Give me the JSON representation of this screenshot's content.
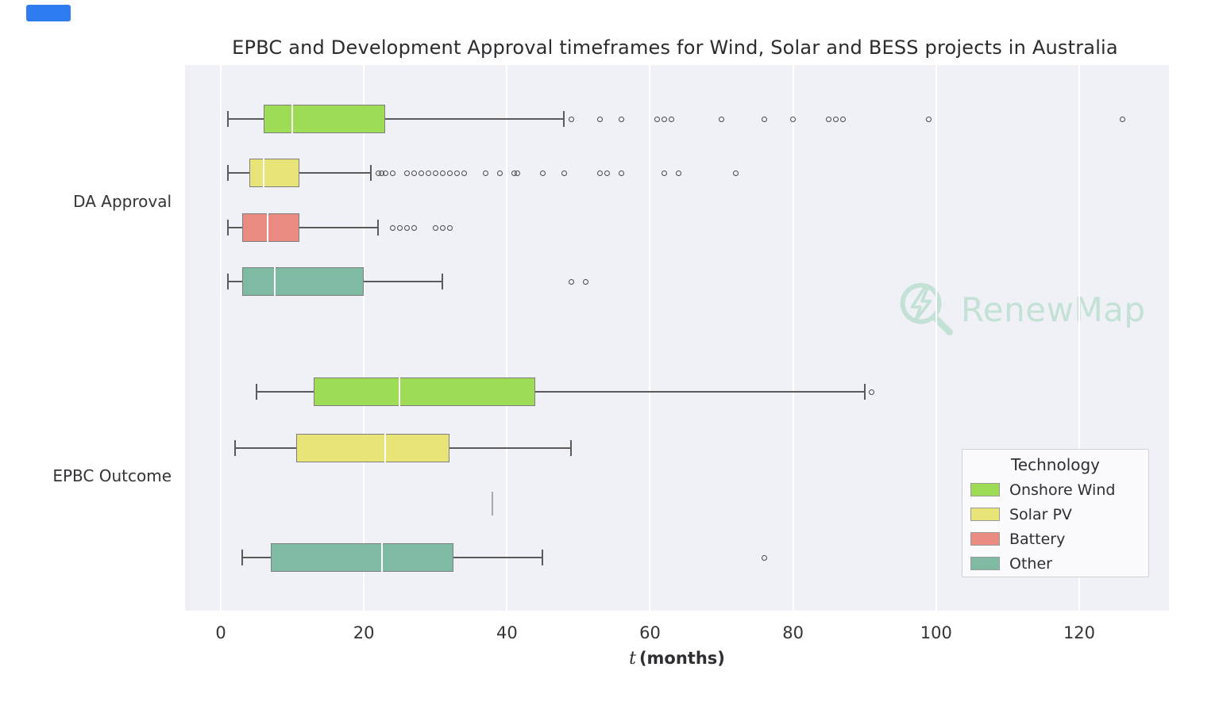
{
  "watermark": {
    "text": "RenewMap"
  },
  "legend": {
    "title": "Technology",
    "items": [
      {
        "label": "Onshore Wind",
        "color": "#9edc55"
      },
      {
        "label": "Solar PV",
        "color": "#e9e478"
      },
      {
        "label": "Battery",
        "color": "#e98b80"
      },
      {
        "label": "Other",
        "color": "#7fbaa2"
      }
    ]
  },
  "chart_data": {
    "type": "boxplot",
    "orientation": "horizontal",
    "title": "EPBC and Development Approval timeframes for Wind, Solar and BESS projects in Australia",
    "xlabel": "t (months)",
    "xlabel_var": "t",
    "xlabel_unit": "(months)",
    "x_ticks": [
      0,
      20,
      40,
      60,
      80,
      100,
      120
    ],
    "xlim": [
      -5,
      132
    ],
    "grid": "vertical-white-on-light",
    "legend_position": "lower right",
    "groups": [
      {
        "label": "DA Approval",
        "boxes": [
          {
            "tech": "Onshore Wind",
            "color": "#9edc55",
            "whisker_low": 1,
            "q1": 6,
            "median": 10,
            "q3": 23,
            "whisker_high": 48,
            "outliers": [
              49,
              53,
              56,
              61,
              62,
              63,
              70,
              76,
              80,
              85,
              86,
              87,
              99,
              126
            ]
          },
          {
            "tech": "Solar PV",
            "color": "#e9e478",
            "whisker_low": 1,
            "q1": 4,
            "median": 6,
            "q3": 11,
            "whisker_high": 21,
            "outliers": [
              22,
              22.5,
              23,
              24,
              26,
              27,
              28,
              29,
              30,
              31,
              32,
              33,
              34,
              37,
              39,
              41,
              41.5,
              45,
              48,
              53,
              54,
              56,
              62,
              64,
              72
            ]
          },
          {
            "tech": "Battery",
            "color": "#e98b80",
            "whisker_low": 1,
            "q1": 3,
            "median": 6.5,
            "q3": 11,
            "whisker_high": 22,
            "outliers": [
              24,
              25,
              26,
              27,
              30,
              31,
              32
            ]
          },
          {
            "tech": "Other",
            "color": "#7fbaa2",
            "whisker_low": 1,
            "q1": 3,
            "median": 7.5,
            "q3": 20,
            "whisker_high": 31,
            "outliers": [
              49,
              51
            ]
          }
        ]
      },
      {
        "label": "EPBC Outcome",
        "boxes": [
          {
            "tech": "Onshore Wind",
            "color": "#9edc55",
            "whisker_low": 5,
            "q1": 13,
            "median": 25,
            "q3": 44,
            "whisker_high": 90,
            "outliers": [
              91
            ]
          },
          {
            "tech": "Solar PV",
            "color": "#e9e478",
            "whisker_low": 2,
            "q1": 10.5,
            "median": 23,
            "q3": 32,
            "whisker_high": 49,
            "outliers": []
          },
          {
            "tech": "Battery",
            "color": "#e98b80",
            "whisker_low": 38,
            "q1": 38,
            "median": 38,
            "q3": 38,
            "whisker_high": 38,
            "outliers": []
          },
          {
            "tech": "Other",
            "color": "#7fbaa2",
            "whisker_low": 3,
            "q1": 7,
            "median": 22.5,
            "q3": 32.5,
            "whisker_high": 45,
            "outliers": [
              76
            ]
          }
        ]
      }
    ]
  }
}
